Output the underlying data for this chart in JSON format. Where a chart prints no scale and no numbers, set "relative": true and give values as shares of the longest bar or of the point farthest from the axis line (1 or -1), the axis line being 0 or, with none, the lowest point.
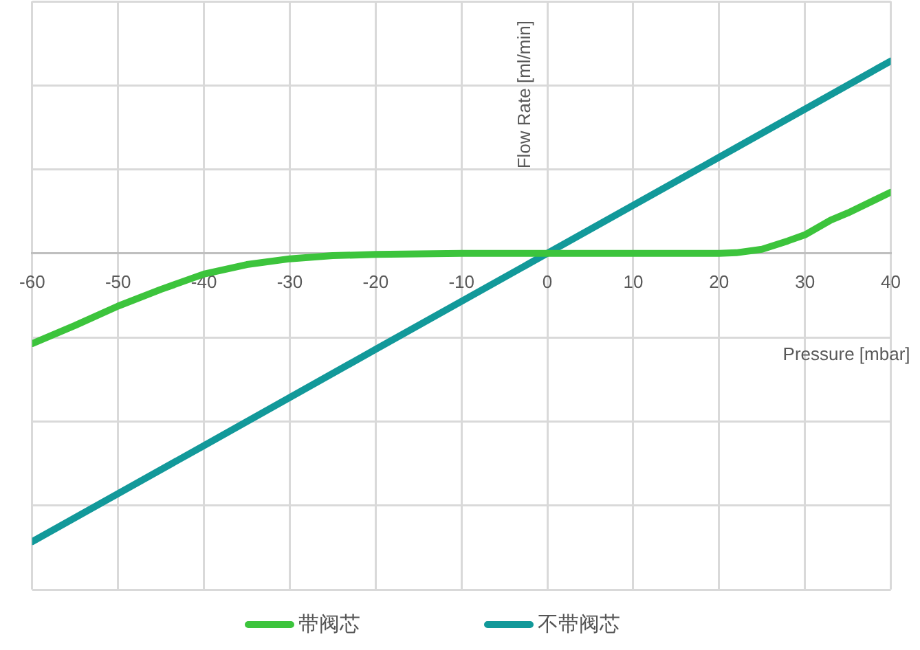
{
  "chart_data": {
    "type": "line",
    "xlabel": "Pressure [mbar]",
    "ylabel": "Flow Rate [ml/min]",
    "relative": true,
    "xlim": [
      -60,
      40
    ],
    "xticks": [
      -60,
      -50,
      -40,
      -30,
      -20,
      -10,
      0,
      10,
      20,
      30,
      40
    ],
    "series": [
      {
        "name": "带阀芯",
        "color": "#3cc43c",
        "x": [
          -60,
          -55,
          -50,
          -45,
          -40,
          -35,
          -30,
          -25,
          -20,
          -15,
          -10,
          0,
          10,
          20,
          22,
          25,
          28,
          30,
          33,
          35,
          40
        ],
        "values": [
          -0.313,
          -0.25,
          -0.183,
          -0.125,
          -0.072,
          -0.039,
          -0.019,
          -0.008,
          -0.004,
          -0.002,
          0,
          0,
          0,
          0,
          0.002,
          0.014,
          0.043,
          0.064,
          0.115,
          0.14,
          0.212
        ]
      },
      {
        "name": "不带阀芯",
        "color": "#12999a",
        "x": [
          -60,
          -40,
          -20,
          0,
          20,
          40
        ],
        "values": [
          -1,
          -0.667,
          -0.333,
          0,
          0.333,
          0.667
        ]
      }
    ],
    "grid": true,
    "legend": "bottom",
    "marker": "none",
    "line_style": "solid"
  }
}
